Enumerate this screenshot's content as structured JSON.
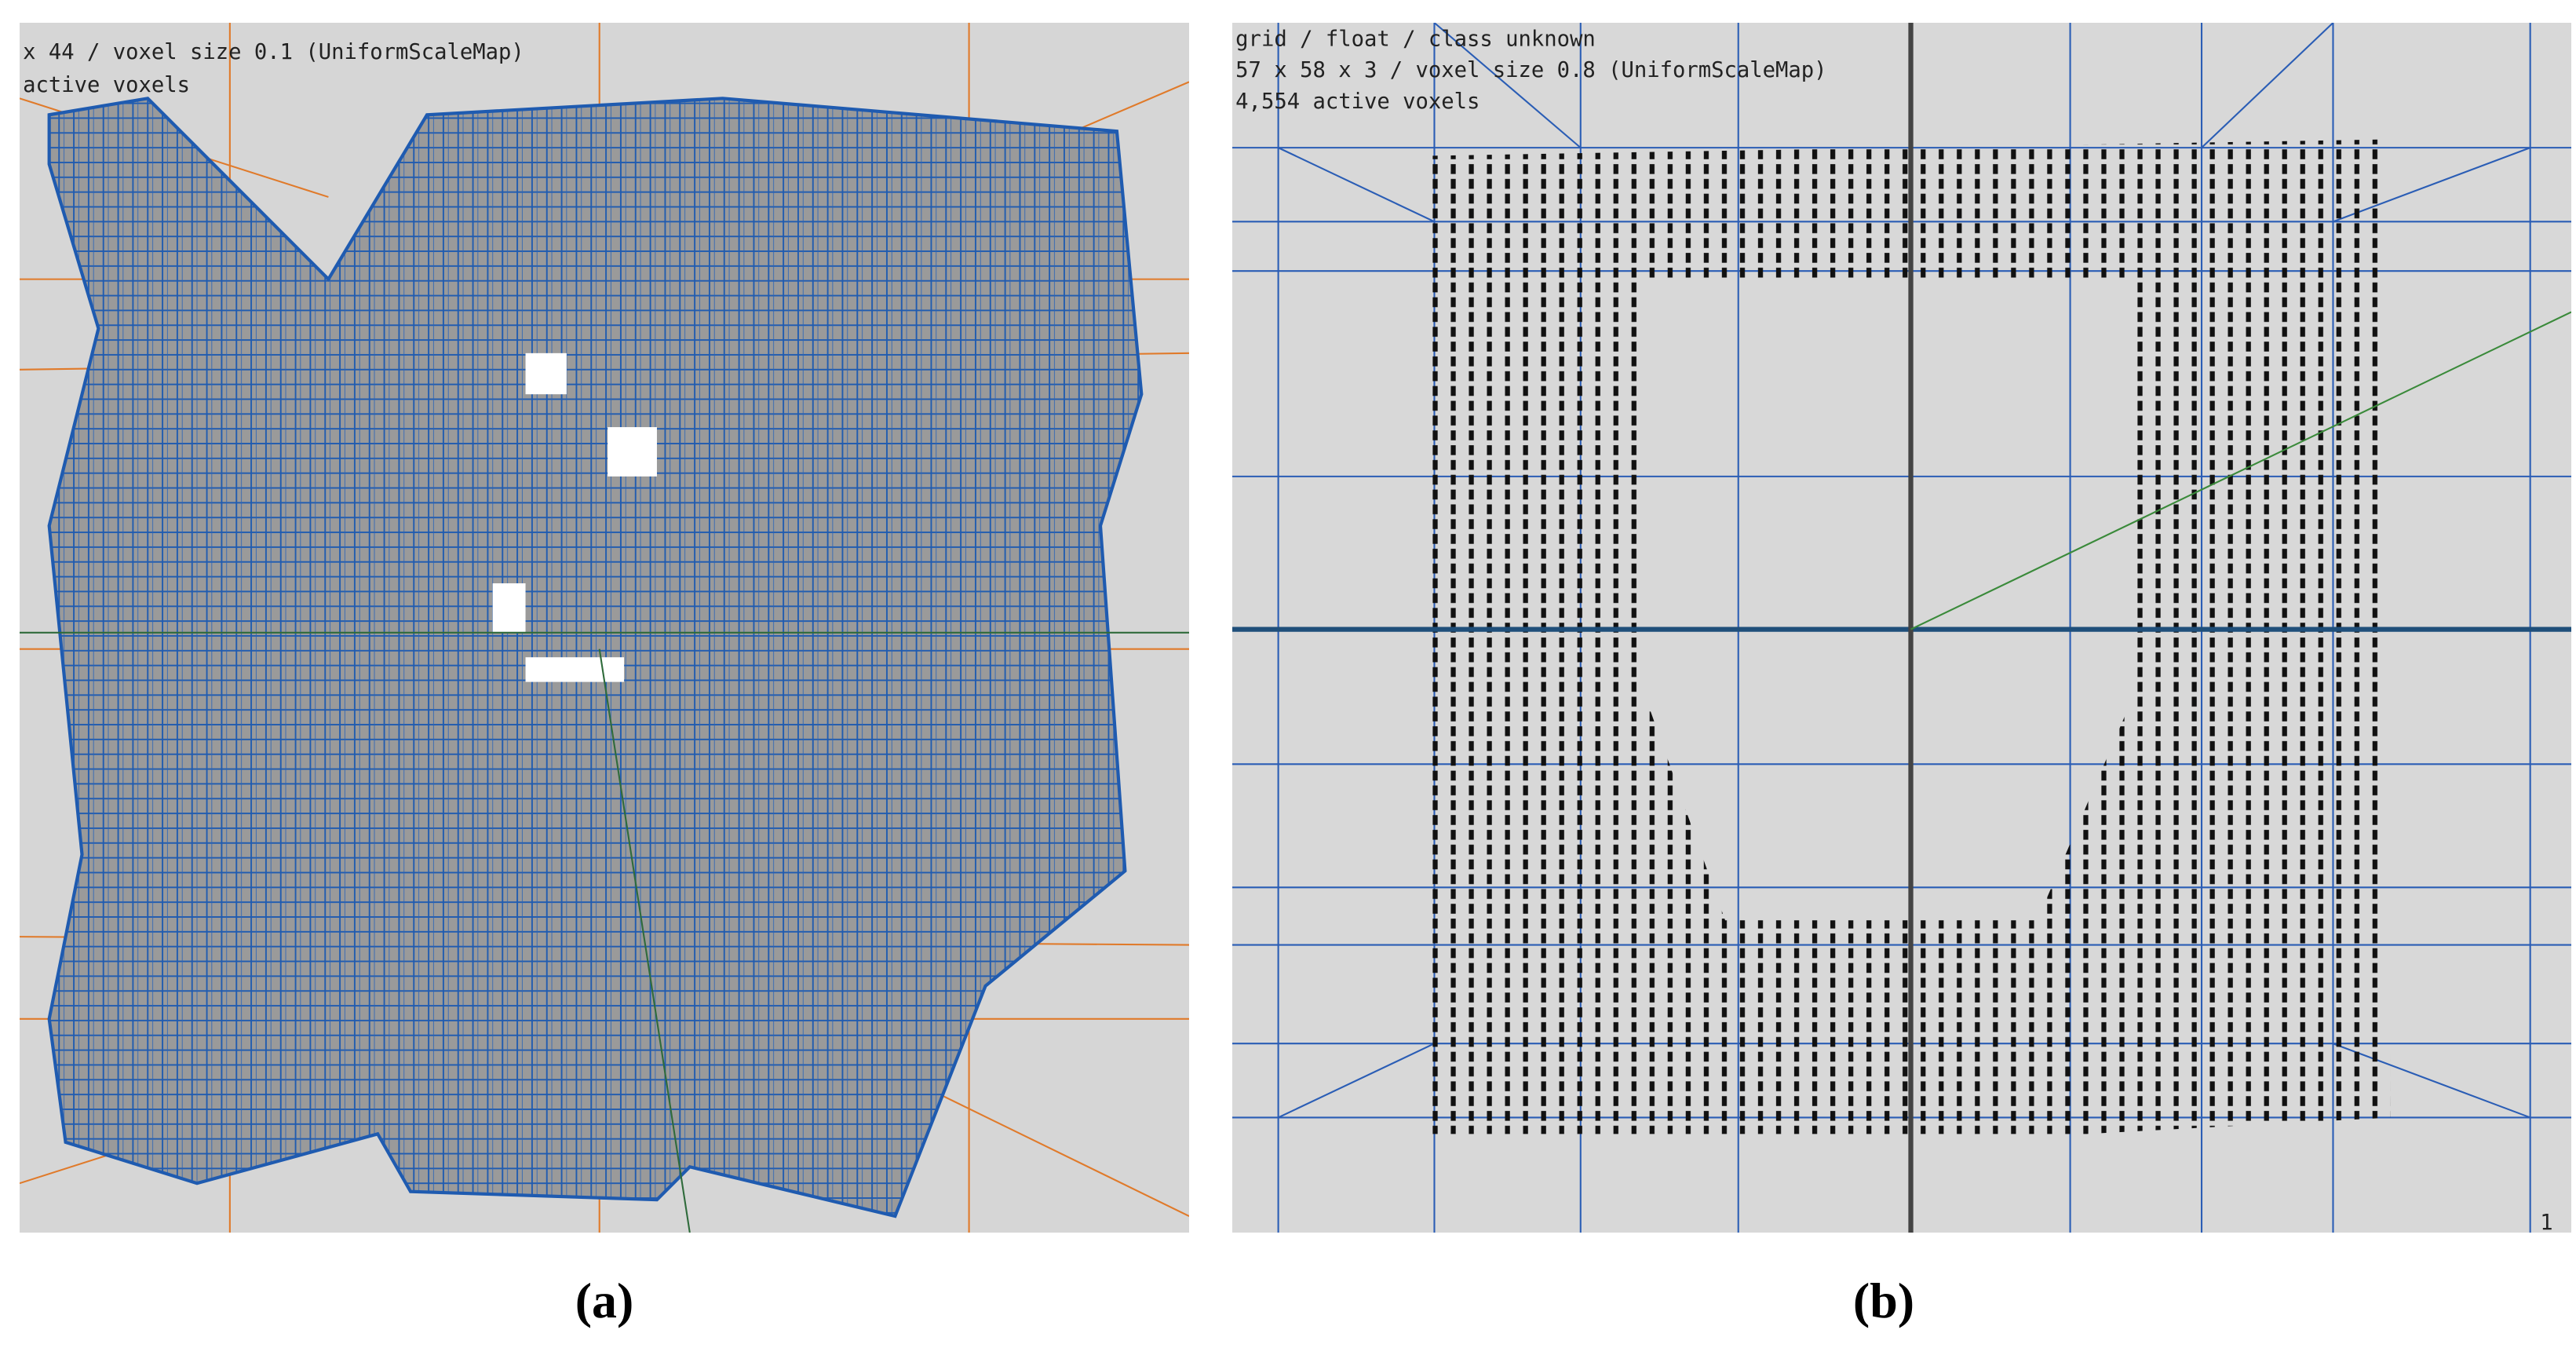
{
  "panels": [
    {
      "lines": [
        "x 44 / voxel size 0.1 (UniformScaleMap)",
        "active voxels"
      ],
      "caption": "(a)"
    },
    {
      "lines": [
        "grid / float /  class unknown",
        "57 x 58 x 3 / voxel size 0.8 (UniformScaleMap)",
        "4,554 active voxels"
      ],
      "corner": "1",
      "caption": "(b)"
    }
  ]
}
